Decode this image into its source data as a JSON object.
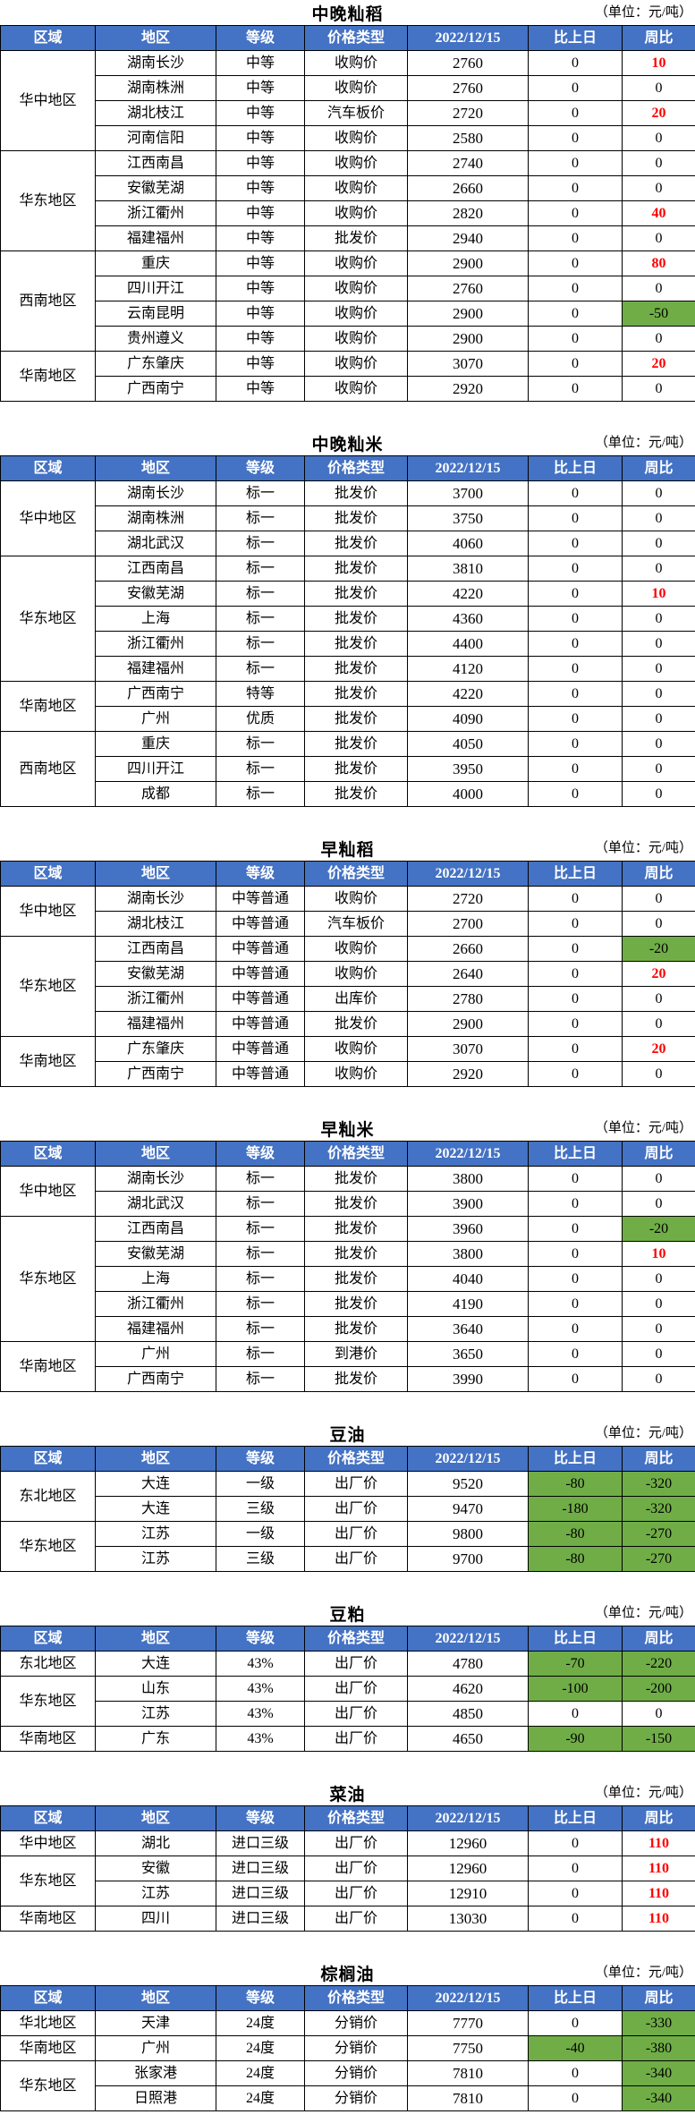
{
  "unit_label": "（单位：元/吨）",
  "columns": [
    "区域",
    "地区",
    "等级",
    "价格类型",
    "2022/12/15",
    "比上日",
    "周比"
  ],
  "colors": {
    "header_bg": "#4472C4",
    "header_text": "#FFFFFF",
    "negative_fill_green": "#70AD47",
    "positive_text_red": "#FF0000"
  },
  "sections": [
    {
      "title": "中晚籼稻",
      "groups": [
        {
          "region": "华中地区",
          "rows": [
            {
              "area": "湖南长沙",
              "grade": "中等",
              "ptype": "收购价",
              "price": "2760",
              "prev": "0",
              "week": "10",
              "week_style": "red"
            },
            {
              "area": "湖南株洲",
              "grade": "中等",
              "ptype": "收购价",
              "price": "2760",
              "prev": "0",
              "week": "0"
            },
            {
              "area": "湖北枝江",
              "grade": "中等",
              "ptype": "汽车板价",
              "price": "2720",
              "prev": "0",
              "week": "20",
              "week_style": "red"
            },
            {
              "area": "河南信阳",
              "grade": "中等",
              "ptype": "收购价",
              "price": "2580",
              "prev": "0",
              "week": "0"
            }
          ]
        },
        {
          "region": "华东地区",
          "rows": [
            {
              "area": "江西南昌",
              "grade": "中等",
              "ptype": "收购价",
              "price": "2740",
              "prev": "0",
              "week": "0"
            },
            {
              "area": "安徽芜湖",
              "grade": "中等",
              "ptype": "收购价",
              "price": "2660",
              "prev": "0",
              "week": "0"
            },
            {
              "area": "浙江衢州",
              "grade": "中等",
              "ptype": "收购价",
              "price": "2820",
              "prev": "0",
              "week": "40",
              "week_style": "red"
            },
            {
              "area": "福建福州",
              "grade": "中等",
              "ptype": "批发价",
              "price": "2940",
              "prev": "0",
              "week": "0"
            }
          ]
        },
        {
          "region": "西南地区",
          "rows": [
            {
              "area": "重庆",
              "grade": "中等",
              "ptype": "收购价",
              "price": "2900",
              "prev": "0",
              "week": "80",
              "week_style": "red"
            },
            {
              "area": "四川开江",
              "grade": "中等",
              "ptype": "收购价",
              "price": "2760",
              "prev": "0",
              "week": "0"
            },
            {
              "area": "云南昆明",
              "grade": "中等",
              "ptype": "收购价",
              "price": "2900",
              "prev": "0",
              "week": "-50",
              "week_style": "green"
            },
            {
              "area": "贵州遵义",
              "grade": "中等",
              "ptype": "收购价",
              "price": "2900",
              "prev": "0",
              "week": "0"
            }
          ]
        },
        {
          "region": "华南地区",
          "rows": [
            {
              "area": "广东肇庆",
              "grade": "中等",
              "ptype": "收购价",
              "price": "3070",
              "prev": "0",
              "week": "20",
              "week_style": "red"
            },
            {
              "area": "广西南宁",
              "grade": "中等",
              "ptype": "收购价",
              "price": "2920",
              "prev": "0",
              "week": "0"
            }
          ]
        }
      ]
    },
    {
      "title": "中晚籼米",
      "groups": [
        {
          "region": "华中地区",
          "rows": [
            {
              "area": "湖南长沙",
              "grade": "标一",
              "ptype": "批发价",
              "price": "3700",
              "prev": "0",
              "week": "0"
            },
            {
              "area": "湖南株洲",
              "grade": "标一",
              "ptype": "批发价",
              "price": "3750",
              "prev": "0",
              "week": "0"
            },
            {
              "area": "湖北武汉",
              "grade": "标一",
              "ptype": "批发价",
              "price": "4060",
              "prev": "0",
              "week": "0"
            }
          ]
        },
        {
          "region": "华东地区",
          "rows": [
            {
              "area": "江西南昌",
              "grade": "标一",
              "ptype": "批发价",
              "price": "3810",
              "prev": "0",
              "week": "0"
            },
            {
              "area": "安徽芜湖",
              "grade": "标一",
              "ptype": "批发价",
              "price": "4220",
              "prev": "0",
              "week": "10",
              "week_style": "red"
            },
            {
              "area": "上海",
              "grade": "标一",
              "ptype": "批发价",
              "price": "4360",
              "prev": "0",
              "week": "0"
            },
            {
              "area": "浙江衢州",
              "grade": "标一",
              "ptype": "批发价",
              "price": "4400",
              "prev": "0",
              "week": "0"
            },
            {
              "area": "福建福州",
              "grade": "标一",
              "ptype": "批发价",
              "price": "4120",
              "prev": "0",
              "week": "0"
            }
          ]
        },
        {
          "region": "华南地区",
          "rows": [
            {
              "area": "广西南宁",
              "grade": "特等",
              "ptype": "批发价",
              "price": "4220",
              "prev": "0",
              "week": "0"
            },
            {
              "area": "广州",
              "grade": "优质",
              "ptype": "批发价",
              "price": "4090",
              "prev": "0",
              "week": "0"
            }
          ]
        },
        {
          "region": "西南地区",
          "rows": [
            {
              "area": "重庆",
              "grade": "标一",
              "ptype": "批发价",
              "price": "4050",
              "prev": "0",
              "week": "0"
            },
            {
              "area": "四川开江",
              "grade": "标一",
              "ptype": "批发价",
              "price": "3950",
              "prev": "0",
              "week": "0"
            },
            {
              "area": "成都",
              "grade": "标一",
              "ptype": "批发价",
              "price": "4000",
              "prev": "0",
              "week": "0"
            }
          ]
        }
      ]
    },
    {
      "title": "早籼稻",
      "groups": [
        {
          "region": "华中地区",
          "rows": [
            {
              "area": "湖南长沙",
              "grade": "中等普通",
              "ptype": "收购价",
              "price": "2720",
              "prev": "0",
              "week": "0"
            },
            {
              "area": "湖北枝江",
              "grade": "中等普通",
              "ptype": "汽车板价",
              "price": "2700",
              "prev": "0",
              "week": "0"
            }
          ]
        },
        {
          "region": "华东地区",
          "rows": [
            {
              "area": "江西南昌",
              "grade": "中等普通",
              "ptype": "收购价",
              "price": "2660",
              "prev": "0",
              "week": "-20",
              "week_style": "green"
            },
            {
              "area": "安徽芜湖",
              "grade": "中等普通",
              "ptype": "收购价",
              "price": "2640",
              "prev": "0",
              "week": "20",
              "week_style": "red"
            },
            {
              "area": "浙江衢州",
              "grade": "中等普通",
              "ptype": "出库价",
              "price": "2780",
              "prev": "0",
              "week": "0"
            },
            {
              "area": "福建福州",
              "grade": "中等普通",
              "ptype": "批发价",
              "price": "2900",
              "prev": "0",
              "week": "0"
            }
          ]
        },
        {
          "region": "华南地区",
          "rows": [
            {
              "area": "广东肇庆",
              "grade": "中等普通",
              "ptype": "收购价",
              "price": "3070",
              "prev": "0",
              "week": "20",
              "week_style": "red"
            },
            {
              "area": "广西南宁",
              "grade": "中等普通",
              "ptype": "收购价",
              "price": "2920",
              "prev": "0",
              "week": "0"
            }
          ]
        }
      ]
    },
    {
      "title": "早籼米",
      "groups": [
        {
          "region": "华中地区",
          "rows": [
            {
              "area": "湖南长沙",
              "grade": "标一",
              "ptype": "批发价",
              "price": "3800",
              "prev": "0",
              "week": "0"
            },
            {
              "area": "湖北武汉",
              "grade": "标一",
              "ptype": "批发价",
              "price": "3900",
              "prev": "0",
              "week": "0"
            }
          ]
        },
        {
          "region": "华东地区",
          "rows": [
            {
              "area": "江西南昌",
              "grade": "标一",
              "ptype": "批发价",
              "price": "3960",
              "prev": "0",
              "week": "-20",
              "week_style": "green"
            },
            {
              "area": "安徽芜湖",
              "grade": "标一",
              "ptype": "批发价",
              "price": "3800",
              "prev": "0",
              "week": "10",
              "week_style": "red"
            },
            {
              "area": "上海",
              "grade": "标一",
              "ptype": "批发价",
              "price": "4040",
              "prev": "0",
              "week": "0"
            },
            {
              "area": "浙江衢州",
              "grade": "标一",
              "ptype": "批发价",
              "price": "4190",
              "prev": "0",
              "week": "0"
            },
            {
              "area": "福建福州",
              "grade": "标一",
              "ptype": "批发价",
              "price": "3640",
              "prev": "0",
              "week": "0"
            }
          ]
        },
        {
          "region": "华南地区",
          "rows": [
            {
              "area": "广州",
              "grade": "标一",
              "ptype": "到港价",
              "price": "3650",
              "prev": "0",
              "week": "0"
            },
            {
              "area": "广西南宁",
              "grade": "标一",
              "ptype": "批发价",
              "price": "3990",
              "prev": "0",
              "week": "0"
            }
          ]
        }
      ]
    },
    {
      "title": "豆油",
      "groups": [
        {
          "region": "东北地区",
          "rows": [
            {
              "area": "大连",
              "grade": "一级",
              "ptype": "出厂价",
              "price": "9520",
              "prev": "-80",
              "prev_style": "green",
              "week": "-320",
              "week_style": "green"
            },
            {
              "area": "大连",
              "grade": "三级",
              "ptype": "出厂价",
              "price": "9470",
              "prev": "-180",
              "prev_style": "green",
              "week": "-320",
              "week_style": "green"
            }
          ]
        },
        {
          "region": "华东地区",
          "rows": [
            {
              "area": "江苏",
              "grade": "一级",
              "ptype": "出厂价",
              "price": "9800",
              "prev": "-80",
              "prev_style": "green",
              "week": "-270",
              "week_style": "green"
            },
            {
              "area": "江苏",
              "grade": "三级",
              "ptype": "出厂价",
              "price": "9700",
              "prev": "-80",
              "prev_style": "green",
              "week": "-270",
              "week_style": "green"
            }
          ]
        }
      ]
    },
    {
      "title": "豆粕",
      "groups": [
        {
          "region": "东北地区",
          "rows": [
            {
              "area": "大连",
              "grade": "43%",
              "ptype": "出厂价",
              "price": "4780",
              "prev": "-70",
              "prev_style": "green",
              "week": "-220",
              "week_style": "green"
            }
          ]
        },
        {
          "region": "华东地区",
          "rows": [
            {
              "area": "山东",
              "grade": "43%",
              "ptype": "出厂价",
              "price": "4620",
              "prev": "-100",
              "prev_style": "green",
              "week": "-200",
              "week_style": "green"
            },
            {
              "area": "江苏",
              "grade": "43%",
              "ptype": "出厂价",
              "price": "4850",
              "prev": "0",
              "week": "0"
            }
          ]
        },
        {
          "region": "华南地区",
          "rows": [
            {
              "area": "广东",
              "grade": "43%",
              "ptype": "出厂价",
              "price": "4650",
              "prev": "-90",
              "prev_style": "green",
              "week": "-150",
              "week_style": "green"
            }
          ]
        }
      ]
    },
    {
      "title": "菜油",
      "groups": [
        {
          "region": "华中地区",
          "rows": [
            {
              "area": "湖北",
              "grade": "进口三级",
              "ptype": "出厂价",
              "price": "12960",
              "prev": "0",
              "week": "110",
              "week_style": "red"
            }
          ]
        },
        {
          "region": "华东地区",
          "rows": [
            {
              "area": "安徽",
              "grade": "进口三级",
              "ptype": "出厂价",
              "price": "12960",
              "prev": "0",
              "week": "110",
              "week_style": "red"
            },
            {
              "area": "江苏",
              "grade": "进口三级",
              "ptype": "出厂价",
              "price": "12910",
              "prev": "0",
              "week": "110",
              "week_style": "red"
            }
          ]
        },
        {
          "region": "华南地区",
          "rows": [
            {
              "area": "四川",
              "grade": "进口三级",
              "ptype": "出厂价",
              "price": "13030",
              "prev": "0",
              "week": "110",
              "week_style": "red"
            }
          ]
        }
      ]
    },
    {
      "title": "棕榈油",
      "groups": [
        {
          "region": "华北地区",
          "rows": [
            {
              "area": "天津",
              "grade": "24度",
              "ptype": "分销价",
              "price": "7770",
              "prev": "0",
              "week": "-330",
              "week_style": "green"
            }
          ]
        },
        {
          "region": "华南地区",
          "rows": [
            {
              "area": "广州",
              "grade": "24度",
              "ptype": "分销价",
              "price": "7750",
              "prev": "-40",
              "prev_style": "green",
              "week": "-380",
              "week_style": "green"
            }
          ]
        },
        {
          "region": "华东地区",
          "rows": [
            {
              "area": "张家港",
              "grade": "24度",
              "ptype": "分销价",
              "price": "7810",
              "prev": "0",
              "week": "-340",
              "week_style": "green"
            },
            {
              "area": "日照港",
              "grade": "24度",
              "ptype": "分销价",
              "price": "7810",
              "prev": "0",
              "week": "-340",
              "week_style": "green"
            }
          ]
        }
      ]
    }
  ]
}
